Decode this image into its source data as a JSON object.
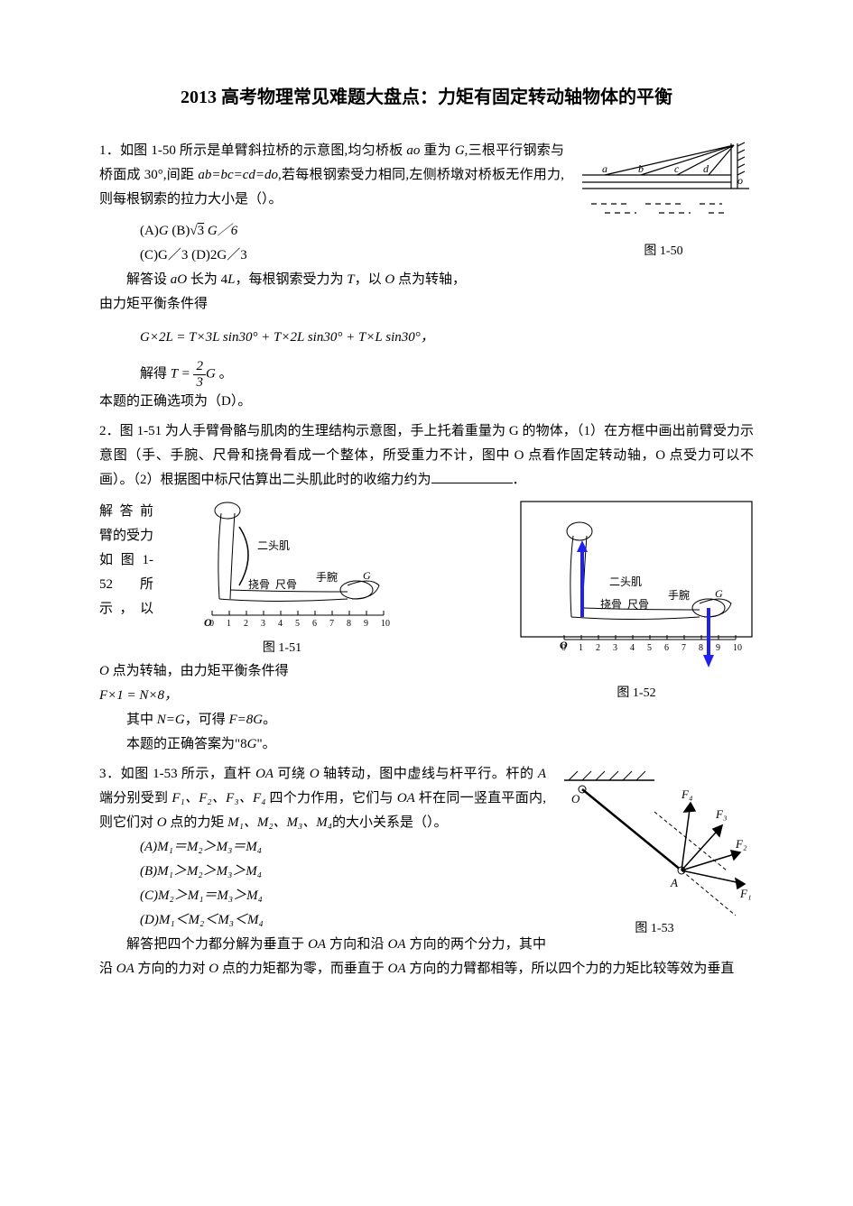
{
  "title": "2013 高考物理常见难题大盘点：力矩有固定转动轴物体的平衡",
  "q1": {
    "stem_a": "1．如图 1-50 所示是单臂斜拉桥的示意图,均匀桥板 ",
    "stem_b": " 重为 ",
    "stem_c": ",三根平行钢索与桥面成 30°,间距 ",
    "stem_d": ",若每根钢索受力相同,左侧桥墩对桥板无作用力,则每根钢索的拉力大小是（）。",
    "var_ao": "ao",
    "var_G": "G",
    "eq_abcd": "ab=bc=cd=do",
    "optA_pre": "(A)",
    "optA_var": "G",
    "optB_pre": "(B)",
    "optB_radicand": "3",
    "optB_after": " G／6",
    "optC": "(C)G／3",
    "optD": "(D)2G／3",
    "sol_l1_a": "解答设 ",
    "sol_l1_var1": "aO",
    "sol_l1_b": " 长为 4",
    "sol_l1_var2": "L",
    "sol_l1_c": "，每根钢索受力为 ",
    "sol_l1_var3": "T",
    "sol_l1_d": "，以 ",
    "sol_l1_var4": "O",
    "sol_l1_e": " 点为转轴，",
    "sol_l2": "由力矩平衡条件得",
    "formula": "G×2L = T×3L sin30° + T×2L sin30° + T×L sin30°，",
    "sol_l3_a": "解得 ",
    "sol_l3_b": " 。",
    "frac_num": "2",
    "frac_den": "3",
    "sol_T": "T",
    "sol_eq": " = ",
    "sol_G": "G",
    "conclusion": "本题的正确选项为（D）。",
    "fig_caption": "图 1-50",
    "fig": {
      "labels": {
        "a": "a",
        "b": "b",
        "c": "c",
        "d": "d",
        "o": "o"
      },
      "stroke": "#000000",
      "hatch": "#000000"
    }
  },
  "q2": {
    "stem_a": "2．图 1-51 为人手臂骨骼与肌肉的生理结构示意图，手上托着重量为 G 的物体，（1）在方框中画出前臂受力示意图（手、手腕、尺骨和挠骨看成一个整体，所受重力不计，图中 O 点看作固定转动轴，O 点受力可以不画）。（2）根据图中标尺估算出二头肌此时的收缩力约为",
    "stem_b": "．",
    "sol_pre": "解 答 前臂的受力 如 图 1-52 所示，以 ",
    "sol_var_O": "O",
    "sol_after_O": " 点为转轴，",
    "sol_l2": "由力矩平衡条件得",
    "formula": "F×1 = N×8，",
    "sol_l3a": "其中 ",
    "sol_l3b": "N=G",
    "sol_l3c": "，可得 ",
    "sol_l3d": "F=8G",
    "sol_l3e": "。",
    "conclusion_a": "本题的正确答案为\"8",
    "conclusion_var": "G",
    "conclusion_b": "\"。",
    "fig51_caption": "图 1-51",
    "fig52_caption": "图 1-52",
    "labels": {
      "biceps": "二头肌",
      "radius": "挠骨",
      "ulna": "尺骨",
      "wrist": "手腕",
      "G": "G",
      "O": "O",
      "ticks": [
        "0",
        "1",
        "2",
        "3",
        "4",
        "5",
        "6",
        "7",
        "8",
        "9",
        "10"
      ]
    },
    "arrow_colors": {
      "up": "#2020f0",
      "down": "#2020f0"
    }
  },
  "q3": {
    "stem_a": "3．如图 1-53 所示，直杆 ",
    "var_OA": "OA",
    "stem_b": " 可绕 ",
    "var_O": "O",
    "stem_c": " 轴转动，图中虚线与杆平行。杆的 ",
    "var_A": "A",
    "stem_d": " 端分别受到 ",
    "vars_F": "F₁、F₂、F₃、F₄",
    "stem_e": " 四个力作用，它们与 ",
    "stem_f": " 杆在同一竖直平面内,则它们对 ",
    "stem_g": " 点的力矩 ",
    "vars_M": "M₁、M₂、M₃、M₄",
    "stem_h": "的大小关系是（）。",
    "optA": "(A)M₁＝M₂＞M₃＝M₄",
    "optB": "(B)M₁＞M₂＞M₃＞M₄",
    "optC": "(C)M₂＞M₁＝M₃＞M₄",
    "optD": "(D)M₁＜M₂＜M₃＜M₄",
    "sol_a": "解答把四个力都分解为垂直于 ",
    "sol_b": " 方向和沿 ",
    "sol_c": " 方向的两个分力，其中沿 ",
    "sol_d": " 方向的力对 ",
    "sol_e": " 点的力矩都为零，而垂直于 ",
    "sol_f": " 方向的力臂都相等，所以四个力的力矩比较等效为垂直",
    "fig_caption": "图 1-53",
    "fig": {
      "labels": {
        "O": "O",
        "A": "A",
        "F1": "F₁",
        "F2": "F₂",
        "F3": "F₃",
        "F4": "F₄"
      },
      "stroke": "#000000"
    }
  }
}
